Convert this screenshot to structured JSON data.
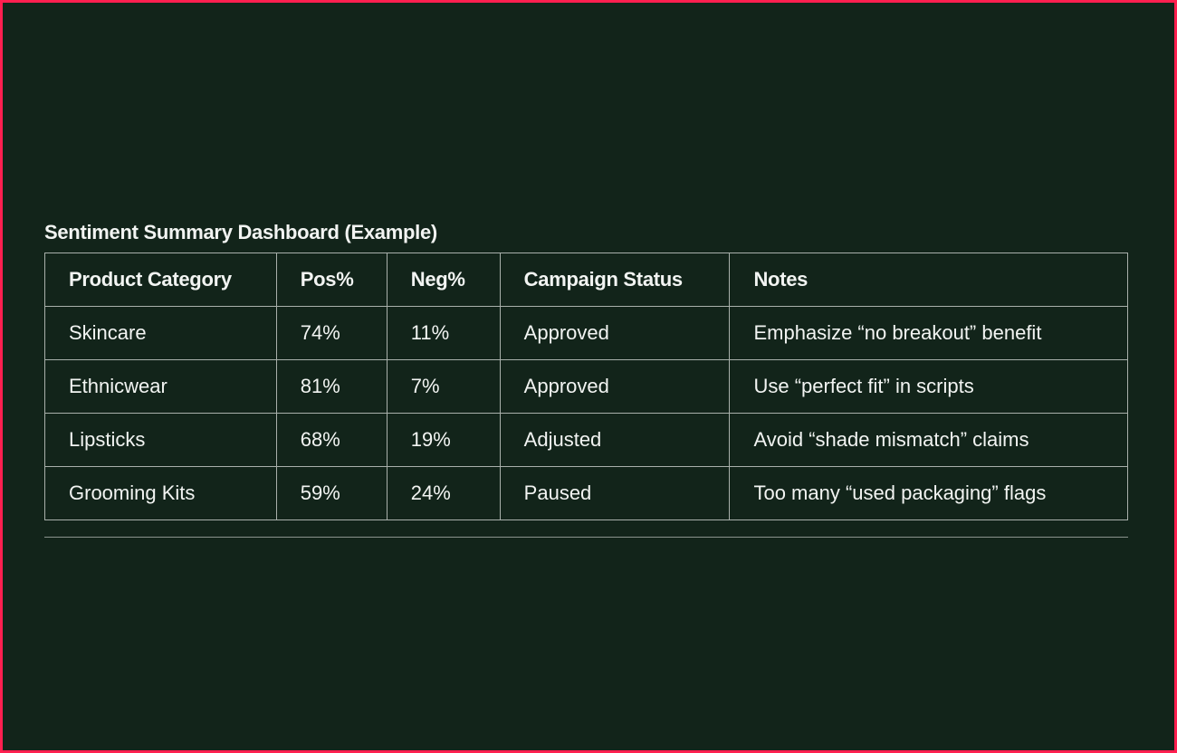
{
  "title": "Sentiment Summary Dashboard (Example)",
  "table": {
    "headers": [
      "Product Category",
      "Pos%",
      "Neg%",
      "Campaign Status",
      "Notes"
    ],
    "rows": [
      [
        "Skincare",
        "74%",
        "11%",
        "Approved",
        "Emphasize “no breakout” benefit"
      ],
      [
        "Ethnicwear",
        "81%",
        "7%",
        "Approved",
        "Use “perfect fit” in scripts"
      ],
      [
        "Lipsticks",
        "68%",
        "19%",
        "Adjusted",
        "Avoid “shade mismatch” claims"
      ],
      [
        "Grooming Kits",
        "59%",
        "24%",
        "Paused",
        "Too many “used packaging” flags"
      ]
    ]
  }
}
